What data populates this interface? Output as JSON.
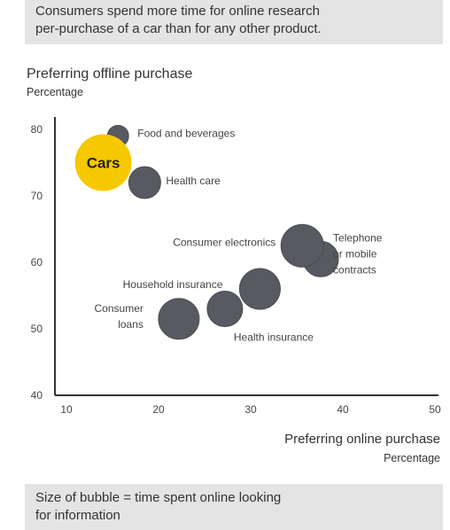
{
  "header": {
    "line1": "Consumers spend more time for online research",
    "line2": "per-purchase of a car than for any other product."
  },
  "footer": {
    "line1": "Size of bubble = time spent online looking",
    "line2": "for information"
  },
  "colors": {
    "highlight": "#f5c800",
    "bubble": "#575a60",
    "axis": "#333333",
    "panel": "#e4e4e4"
  },
  "chart_data": {
    "type": "scatter",
    "title": "",
    "ylabel": "Preferring offline purchase",
    "ylabel_sub": "Percentage",
    "xlabel": "Preferring online purchase",
    "xlabel_sub": "Percentage",
    "xlim": [
      10,
      50
    ],
    "ylim": [
      40,
      80
    ],
    "xticks": [
      "10",
      "20",
      "30",
      "40",
      "50"
    ],
    "yticks": [
      "40",
      "50",
      "60",
      "70",
      "80"
    ],
    "points": [
      {
        "label": "Food and beverages",
        "x": 15.6,
        "y": 79,
        "size": 12,
        "highlight": false
      },
      {
        "label": "Cars",
        "x": 14,
        "y": 75,
        "size": 32,
        "highlight": true,
        "inner_text": "Cars"
      },
      {
        "label": "Health care",
        "x": 18.5,
        "y": 72,
        "size": 18,
        "highlight": false
      },
      {
        "label": "Telephone or mobile contracts",
        "x": 37.6,
        "y": 60.5,
        "size": 20,
        "highlight": false
      },
      {
        "label": "Consumer electronics",
        "x": 35.6,
        "y": 62.5,
        "size": 24,
        "highlight": false
      },
      {
        "label": "Household insurance",
        "x": 31,
        "y": 56,
        "size": 23,
        "highlight": false
      },
      {
        "label": "Health insurance",
        "x": 27.2,
        "y": 53,
        "size": 20,
        "highlight": false
      },
      {
        "label": "Consumer loans",
        "x": 22.2,
        "y": 51.5,
        "size": 23,
        "highlight": false
      }
    ],
    "annotations": [
      {
        "point": "Food and beverages",
        "lines": [
          "Food and beverages"
        ]
      },
      {
        "point": "Health care",
        "lines": [
          "Health care"
        ]
      },
      {
        "point": "Consumer electronics",
        "lines": [
          "Consumer electronics"
        ]
      },
      {
        "point": "Telephone or mobile contracts",
        "lines": [
          "Telephone",
          "or mobile",
          "contracts"
        ]
      },
      {
        "point": "Household insurance",
        "lines": [
          "Household insurance"
        ]
      },
      {
        "point": "Consumer loans",
        "lines": [
          "Consumer",
          "loans"
        ]
      },
      {
        "point": "Health insurance",
        "lines": [
          "Health insurance"
        ]
      }
    ]
  }
}
